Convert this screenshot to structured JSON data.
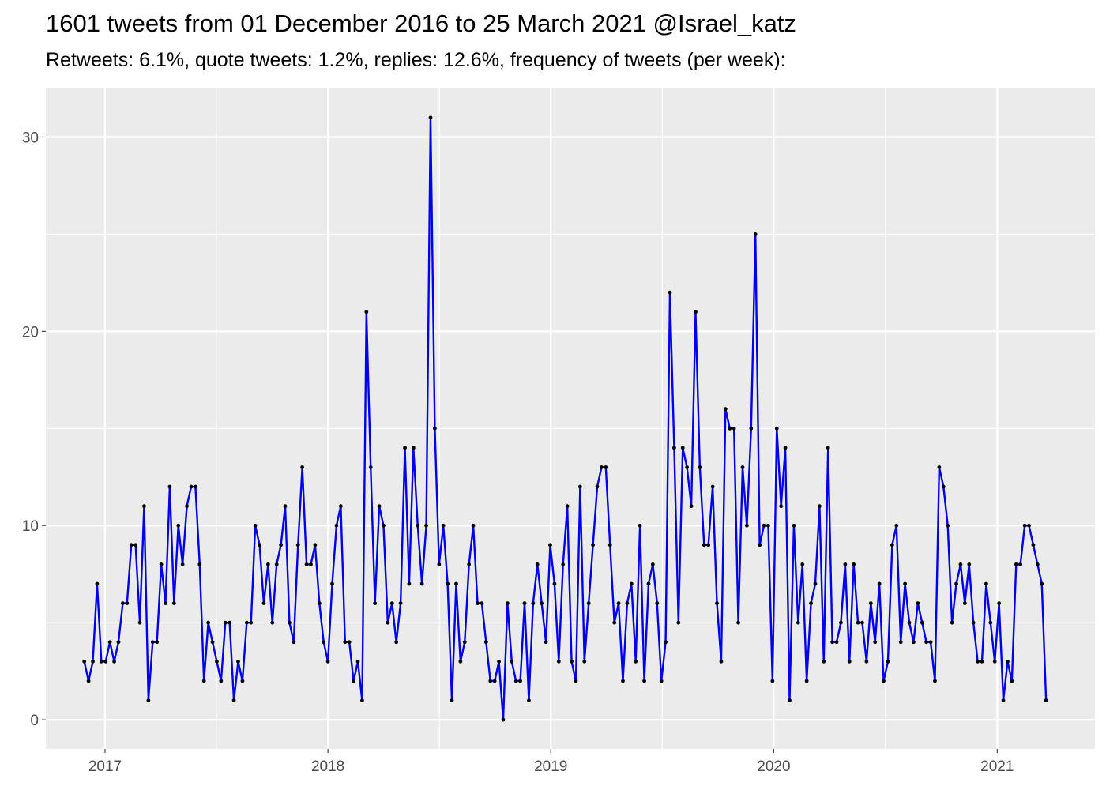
{
  "title": "1601 tweets from 01 December 2016 to 25 March 2021 @Israel_katz",
  "subtitle": "Retweets: 6.1%, quote tweets: 1.2%, replies: 12.6%, frequency of tweets (per week):",
  "colors": {
    "panel": "#ebebeb",
    "grid": "#ffffff",
    "line": "#0000ee",
    "point": "#000000",
    "tick_text": "#4d4d4d"
  },
  "chart_data": {
    "type": "line",
    "title": "1601 tweets from 01 December 2016 to 25 March 2021 @Israel_katz",
    "subtitle": "Retweets: 6.1%, quote tweets: 1.2%, replies: 12.6%, frequency of tweets (per week):",
    "xlabel": "",
    "ylabel": "",
    "x_start": "2016-11-28",
    "x_interval": "1 week",
    "xlim": [
      "2016-09-26",
      "2021-06-10"
    ],
    "ylim": [
      -1.5,
      32.5
    ],
    "x_ticks": [
      {
        "date": "2017-01-01",
        "label": "2017"
      },
      {
        "date": "2018-01-01",
        "label": "2018"
      },
      {
        "date": "2019-01-01",
        "label": "2019"
      },
      {
        "date": "2020-01-01",
        "label": "2020"
      },
      {
        "date": "2021-01-01",
        "label": "2021"
      }
    ],
    "y_ticks": [
      0,
      10,
      20,
      30
    ],
    "grid": true,
    "markers": true,
    "values": [
      3,
      2,
      3,
      7,
      3,
      3,
      4,
      3,
      4,
      6,
      6,
      9,
      9,
      5,
      11,
      1,
      4,
      4,
      8,
      6,
      12,
      6,
      10,
      8,
      11,
      12,
      12,
      8,
      2,
      5,
      4,
      3,
      2,
      5,
      5,
      1,
      3,
      2,
      5,
      5,
      10,
      9,
      6,
      8,
      5,
      8,
      9,
      11,
      5,
      4,
      9,
      13,
      8,
      8,
      9,
      6,
      4,
      3,
      7,
      10,
      11,
      4,
      4,
      2,
      3,
      1,
      21,
      13,
      6,
      11,
      10,
      5,
      6,
      4,
      6,
      14,
      7,
      14,
      10,
      7,
      10,
      31,
      15,
      8,
      10,
      7,
      1,
      7,
      3,
      4,
      8,
      10,
      6,
      6,
      4,
      2,
      2,
      3,
      0,
      6,
      3,
      2,
      2,
      6,
      1,
      6,
      8,
      6,
      4,
      9,
      7,
      3,
      8,
      11,
      3,
      2,
      12,
      3,
      6,
      9,
      12,
      13,
      13,
      9,
      5,
      6,
      2,
      6,
      7,
      3,
      10,
      2,
      7,
      8,
      6,
      2,
      4,
      22,
      14,
      5,
      14,
      13,
      11,
      21,
      13,
      9,
      9,
      12,
      6,
      3,
      16,
      15,
      15,
      5,
      13,
      10,
      15,
      25,
      9,
      10,
      10,
      2,
      15,
      11,
      14,
      1,
      10,
      5,
      8,
      2,
      6,
      7,
      11,
      3,
      14,
      4,
      4,
      5,
      8,
      3,
      8,
      5,
      5,
      3,
      6,
      4,
      7,
      2,
      3,
      9,
      10,
      4,
      7,
      5,
      4,
      6,
      5,
      4,
      4,
      2,
      13,
      12,
      10,
      5,
      7,
      8,
      6,
      8,
      5,
      3,
      3,
      7,
      5,
      3,
      6,
      1,
      3,
      2,
      8,
      8,
      10,
      10,
      9,
      8,
      7,
      1
    ]
  }
}
